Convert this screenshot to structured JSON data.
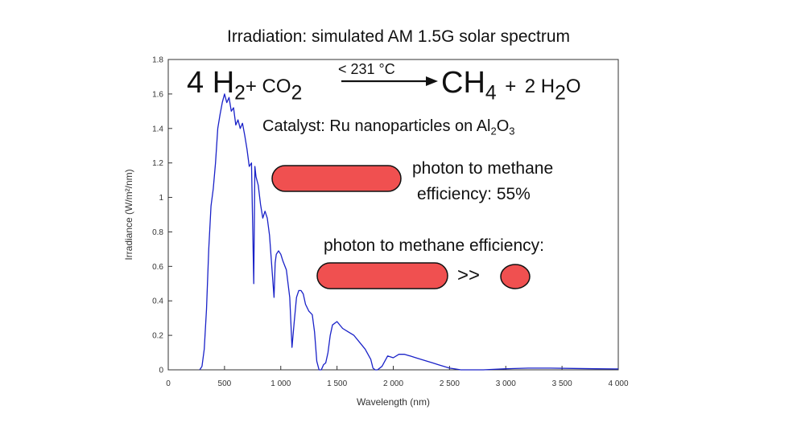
{
  "title": "Irradiation:  simulated AM 1.5G solar spectrum",
  "equation": {
    "lhs_coef_h2": "4 H",
    "h2_sub": "2",
    "plus1": "+ CO",
    "co2_sub": "2",
    "condition": "< 231 °C",
    "rhs_ch": "CH",
    "ch4_sub": "4",
    "plus2": "+",
    "h2o_coef": "2 H",
    "h2o_sub": "2",
    "h2o_o": "O"
  },
  "catalyst": {
    "prefix": "Catalyst:  Ru nanoparticles  on Al",
    "al_sub": "2",
    "o_text": "O",
    "o_sub": "3"
  },
  "annotation1": {
    "line1": "photon to methane",
    "line2": "efficiency:  55%"
  },
  "annotation2": {
    "line1": "photon to methane efficiency:",
    "comparison": ">>"
  },
  "colors": {
    "spectrum": "#1a22c8",
    "pill": "#f05050",
    "pill_stroke": "#111111"
  },
  "chart_data": {
    "type": "line",
    "xlabel": "Wavelength (nm)",
    "ylabel": "Irradiance (W/m²/nm)",
    "xlim": [
      0,
      4000
    ],
    "ylim": [
      0,
      1.8
    ],
    "xticks": [
      0,
      500,
      1000,
      1500,
      2000,
      2500,
      3000,
      3500,
      4000
    ],
    "xtick_labels": [
      "0",
      "500",
      "1 000",
      "1 500",
      "2 000",
      "2 500",
      "3 000",
      "3 500",
      "4 000"
    ],
    "yticks": [
      0,
      0.2,
      0.4,
      0.6,
      0.8,
      1,
      1.2,
      1.4,
      1.6,
      1.8
    ],
    "ytick_labels": [
      "0",
      "0.2",
      "0.4",
      "0.6",
      "0.8",
      "1",
      "1.2",
      "1.4",
      "1.6",
      "1.8"
    ],
    "series": [
      {
        "x": [
          280,
          300,
          320,
          340,
          360,
          380,
          400,
          420,
          440,
          460,
          480,
          500,
          520,
          540,
          560,
          580,
          600,
          620,
          640,
          660,
          680,
          700,
          720,
          740,
          760,
          770,
          780,
          800,
          820,
          840,
          860,
          880,
          900,
          920,
          940,
          950,
          960,
          980,
          1000,
          1020,
          1050,
          1080,
          1100,
          1120,
          1140,
          1160,
          1180,
          1200,
          1220,
          1250,
          1280,
          1300,
          1320,
          1340,
          1360,
          1380,
          1400,
          1420,
          1440,
          1460,
          1500,
          1550,
          1600,
          1650,
          1700,
          1750,
          1800,
          1820,
          1840,
          1860,
          1900,
          1950,
          2000,
          2050,
          2100,
          2150,
          2200,
          2250,
          2300,
          2350,
          2400,
          2450,
          2500,
          2550,
          2600,
          2800,
          3000,
          3200,
          3400,
          3600,
          3800,
          4000
        ],
        "y": [
          0,
          0.02,
          0.12,
          0.35,
          0.7,
          0.95,
          1.05,
          1.2,
          1.4,
          1.48,
          1.55,
          1.6,
          1.55,
          1.58,
          1.5,
          1.52,
          1.42,
          1.45,
          1.4,
          1.43,
          1.36,
          1.28,
          1.18,
          1.2,
          0.5,
          1.18,
          1.12,
          1.07,
          0.96,
          0.88,
          0.92,
          0.88,
          0.78,
          0.6,
          0.42,
          0.62,
          0.67,
          0.69,
          0.67,
          0.63,
          0.58,
          0.42,
          0.13,
          0.28,
          0.42,
          0.46,
          0.46,
          0.44,
          0.38,
          0.34,
          0.32,
          0.22,
          0.05,
          0,
          0,
          0.03,
          0.04,
          0.1,
          0.2,
          0.26,
          0.28,
          0.24,
          0.22,
          0.2,
          0.16,
          0.12,
          0.06,
          0.01,
          0,
          0,
          0.02,
          0.08,
          0.07,
          0.09,
          0.09,
          0.08,
          0.07,
          0.06,
          0.05,
          0.04,
          0.03,
          0.02,
          0.01,
          0.005,
          0,
          0,
          0.006,
          0.01,
          0.01,
          0.008,
          0.006,
          0.005
        ]
      }
    ]
  }
}
